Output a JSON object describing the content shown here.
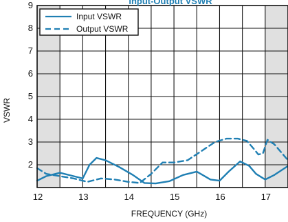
{
  "chart_data": {
    "type": "line",
    "title": "Input-Output VSWR",
    "xlabel": "FREQUENCY (GHz)",
    "ylabel": "VSWR",
    "xlim": [
      12,
      17.5
    ],
    "ylim": [
      1,
      9
    ],
    "x_ticks": [
      12,
      13,
      14,
      15,
      16,
      17
    ],
    "y_ticks": [
      2,
      3,
      4,
      5,
      6,
      7,
      8,
      9
    ],
    "grid": true,
    "legend_position": "top-left",
    "shaded_ranges": [
      [
        12,
        12.5
      ],
      [
        17,
        17.5
      ]
    ],
    "series": [
      {
        "name": "Input VSWR",
        "style": "solid",
        "color": "#1f7fb3",
        "x": [
          12.0,
          12.2,
          12.5,
          12.8,
          13.0,
          13.15,
          13.3,
          13.5,
          13.8,
          14.1,
          14.35,
          14.6,
          14.9,
          15.2,
          15.5,
          15.8,
          16.0,
          16.2,
          16.45,
          16.65,
          16.8,
          17.0,
          17.2,
          17.5
        ],
        "values": [
          1.3,
          1.5,
          1.65,
          1.5,
          1.4,
          2.0,
          2.3,
          2.2,
          1.9,
          1.55,
          1.2,
          1.18,
          1.28,
          1.55,
          1.7,
          1.35,
          1.3,
          1.7,
          2.15,
          1.95,
          1.6,
          1.35,
          1.55,
          1.95
        ]
      },
      {
        "name": "Output VSWR",
        "style": "dashed",
        "color": "#1f7fb3",
        "x": [
          12.0,
          12.2,
          12.5,
          12.8,
          13.1,
          13.4,
          13.7,
          14.0,
          14.25,
          14.5,
          14.75,
          15.0,
          15.3,
          15.6,
          15.9,
          16.15,
          16.4,
          16.6,
          16.75,
          16.85,
          16.95,
          17.05,
          17.2,
          17.5
        ],
        "values": [
          1.85,
          1.6,
          1.5,
          1.4,
          1.25,
          1.4,
          1.35,
          1.25,
          1.2,
          1.6,
          2.1,
          2.1,
          2.2,
          2.6,
          3.0,
          3.15,
          3.15,
          3.05,
          2.7,
          2.45,
          2.5,
          3.1,
          2.9,
          2.2
        ]
      }
    ]
  },
  "legend": {
    "items": [
      {
        "label": "Input VSWR",
        "style": "solid"
      },
      {
        "label": "Output VSWR",
        "style": "dashed"
      }
    ]
  },
  "colors": {
    "series": "#1f7fb3",
    "shade": "#e0e0e0",
    "grid": "#111111",
    "text": "#111111"
  }
}
